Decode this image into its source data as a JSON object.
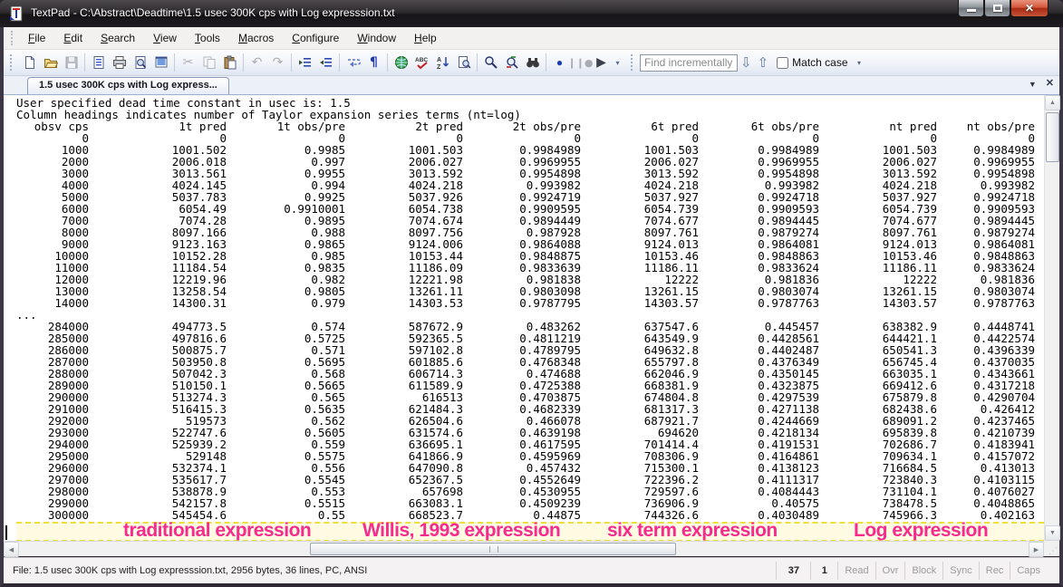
{
  "window": {
    "title": "TextPad - C:\\Abstract\\Deadtime\\1.5 usec 300K cps with Log expresssion.txt",
    "controls": {
      "minimize": "minimize",
      "maximize": "maximize",
      "close": "close"
    }
  },
  "menu": {
    "items": [
      "File",
      "Edit",
      "Search",
      "View",
      "Tools",
      "Macros",
      "Configure",
      "Window",
      "Help"
    ]
  },
  "toolbar": {
    "icons": [
      "new-file",
      "open-file",
      "save",
      "document-properties",
      "print",
      "print-preview",
      "view-in-browser",
      "cut",
      "copy",
      "paste",
      "undo",
      "redo",
      "unindent",
      "indent",
      "word-wrap",
      "show-formatting-marks",
      "html-validate",
      "spell-check",
      "sort",
      "find-in-document",
      "find",
      "replace",
      "find-in-files",
      "record-macro",
      "stop-macro",
      "play-macro"
    ],
    "find": {
      "placeholder": "Find incrementally",
      "match_case_label": "Match case",
      "match_case_checked": false
    }
  },
  "tab": {
    "label": "1.5 usec 300K cps with Log express..."
  },
  "document": {
    "intro_lines": [
      "User specified dead time constant in usec is: 1.5",
      "Column headings indicates number of Taylor expansion series terms (nt=log)"
    ],
    "columns": [
      "obsv cps",
      "1t pred",
      "1t obs/pre",
      "2t pred",
      "2t obs/pre",
      "6t pred",
      "6t obs/pre",
      "nt pred",
      "nt obs/pre"
    ],
    "rows_top": [
      [
        "0",
        "0",
        "0",
        "0",
        "0",
        "0",
        "0",
        "0",
        "0"
      ],
      [
        "1000",
        "1001.502",
        "0.9985",
        "1001.503",
        "0.9984989",
        "1001.503",
        "0.9984989",
        "1001.503",
        "0.9984989"
      ],
      [
        "2000",
        "2006.018",
        "0.997",
        "2006.027",
        "0.9969955",
        "2006.027",
        "0.9969955",
        "2006.027",
        "0.9969955"
      ],
      [
        "3000",
        "3013.561",
        "0.9955",
        "3013.592",
        "0.9954898",
        "3013.592",
        "0.9954898",
        "3013.592",
        "0.9954898"
      ],
      [
        "4000",
        "4024.145",
        "0.994",
        "4024.218",
        "0.993982",
        "4024.218",
        "0.993982",
        "4024.218",
        "0.993982"
      ],
      [
        "5000",
        "5037.783",
        "0.9925",
        "5037.926",
        "0.9924719",
        "5037.927",
        "0.9924718",
        "5037.927",
        "0.9924718"
      ],
      [
        "6000",
        "6054.49",
        "0.9910001",
        "6054.738",
        "0.9909595",
        "6054.739",
        "0.9909593",
        "6054.739",
        "0.9909593"
      ],
      [
        "7000",
        "7074.28",
        "0.9895",
        "7074.674",
        "0.9894449",
        "7074.677",
        "0.9894445",
        "7074.677",
        "0.9894445"
      ],
      [
        "8000",
        "8097.166",
        "0.988",
        "8097.756",
        "0.987928",
        "8097.761",
        "0.9879274",
        "8097.761",
        "0.9879274"
      ],
      [
        "9000",
        "9123.163",
        "0.9865",
        "9124.006",
        "0.9864088",
        "9124.013",
        "0.9864081",
        "9124.013",
        "0.9864081"
      ],
      [
        "10000",
        "10152.28",
        "0.985",
        "10153.44",
        "0.9848875",
        "10153.46",
        "0.9848863",
        "10153.46",
        "0.9848863"
      ],
      [
        "11000",
        "11184.54",
        "0.9835",
        "11186.09",
        "0.9833639",
        "11186.11",
        "0.9833624",
        "11186.11",
        "0.9833624"
      ],
      [
        "12000",
        "12219.96",
        "0.982",
        "12221.98",
        "0.981838",
        "12222",
        "0.981836",
        "12222",
        "0.981836"
      ],
      [
        "13000",
        "13258.54",
        "0.9805",
        "13261.11",
        "0.9803098",
        "13261.15",
        "0.9803074",
        "13261.15",
        "0.9803074"
      ],
      [
        "14000",
        "14300.31",
        "0.979",
        "14303.53",
        "0.9787795",
        "14303.57",
        "0.9787763",
        "14303.57",
        "0.9787763"
      ]
    ],
    "ellipsis": "...",
    "rows_bottom": [
      [
        "284000",
        "494773.5",
        "0.574",
        "587672.9",
        "0.483262",
        "637547.6",
        "0.445457",
        "638382.9",
        "0.4448741"
      ],
      [
        "285000",
        "497816.6",
        "0.5725",
        "592365.5",
        "0.4811219",
        "643549.9",
        "0.4428561",
        "644421.1",
        "0.4422574"
      ],
      [
        "286000",
        "500875.7",
        "0.571",
        "597102.8",
        "0.4789795",
        "649632.8",
        "0.4402487",
        "650541.3",
        "0.4396339"
      ],
      [
        "287000",
        "503950.8",
        "0.5695",
        "601885.6",
        "0.4768348",
        "655797.8",
        "0.4376349",
        "656745.4",
        "0.4370035"
      ],
      [
        "288000",
        "507042.3",
        "0.568",
        "606714.3",
        "0.474688",
        "662046.9",
        "0.4350145",
        "663035.1",
        "0.4343661"
      ],
      [
        "289000",
        "510150.1",
        "0.5665",
        "611589.9",
        "0.4725388",
        "668381.9",
        "0.4323875",
        "669412.6",
        "0.4317218"
      ],
      [
        "290000",
        "513274.3",
        "0.565",
        "616513",
        "0.4703875",
        "674804.8",
        "0.4297539",
        "675879.8",
        "0.4290704"
      ],
      [
        "291000",
        "516415.3",
        "0.5635",
        "621484.3",
        "0.4682339",
        "681317.3",
        "0.4271138",
        "682438.6",
        "0.426412"
      ],
      [
        "292000",
        "519573",
        "0.562",
        "626504.6",
        "0.466078",
        "687921.7",
        "0.4244669",
        "689091.2",
        "0.4237465"
      ],
      [
        "293000",
        "522747.6",
        "0.5605",
        "631574.6",
        "0.4639198",
        "694620",
        "0.4218134",
        "695839.8",
        "0.4210739"
      ],
      [
        "294000",
        "525939.2",
        "0.559",
        "636695.1",
        "0.4617595",
        "701414.4",
        "0.4191531",
        "702686.7",
        "0.4183941"
      ],
      [
        "295000",
        "529148",
        "0.5575",
        "641866.9",
        "0.4595969",
        "708306.9",
        "0.4164861",
        "709634.1",
        "0.4157072"
      ],
      [
        "296000",
        "532374.1",
        "0.556",
        "647090.8",
        "0.457432",
        "715300.1",
        "0.4138123",
        "716684.5",
        "0.413013"
      ],
      [
        "297000",
        "535617.7",
        "0.5545",
        "652367.5",
        "0.4552649",
        "722396.2",
        "0.4111317",
        "723840.3",
        "0.4103115"
      ],
      [
        "298000",
        "538878.9",
        "0.553",
        "657698",
        "0.4530955",
        "729597.6",
        "0.4084443",
        "731104.1",
        "0.4076027"
      ],
      [
        "299000",
        "542157.8",
        "0.5515",
        "663083.1",
        "0.4509239",
        "736906.9",
        "0.40575",
        "738478.5",
        "0.4048865"
      ],
      [
        "300000",
        "545454.6",
        "0.55",
        "668523.7",
        "0.44875",
        "744326.6",
        "0.4030489",
        "745966.3",
        "0.402163"
      ]
    ],
    "annotations": [
      {
        "id": "traditional",
        "label": "traditional expression"
      },
      {
        "id": "willis-1993",
        "label": "Willis, 1993 expression"
      },
      {
        "id": "six-term",
        "label": "six term expression"
      },
      {
        "id": "log",
        "label": "Log expression"
      }
    ],
    "annotation_color": "#f72b8d",
    "annotation_band_bg": "#fffbe2",
    "annotation_dash_color": "#ece03e"
  },
  "status_bar": {
    "file_info": "File: 1.5 usec 300K cps with Log expresssion.txt, 2956 bytes, 36 lines, PC, ANSI",
    "line_number": "37",
    "column_number": "1",
    "indicators": [
      "Read",
      "Ovr",
      "Block",
      "Sync",
      "Rec",
      "Caps"
    ]
  }
}
